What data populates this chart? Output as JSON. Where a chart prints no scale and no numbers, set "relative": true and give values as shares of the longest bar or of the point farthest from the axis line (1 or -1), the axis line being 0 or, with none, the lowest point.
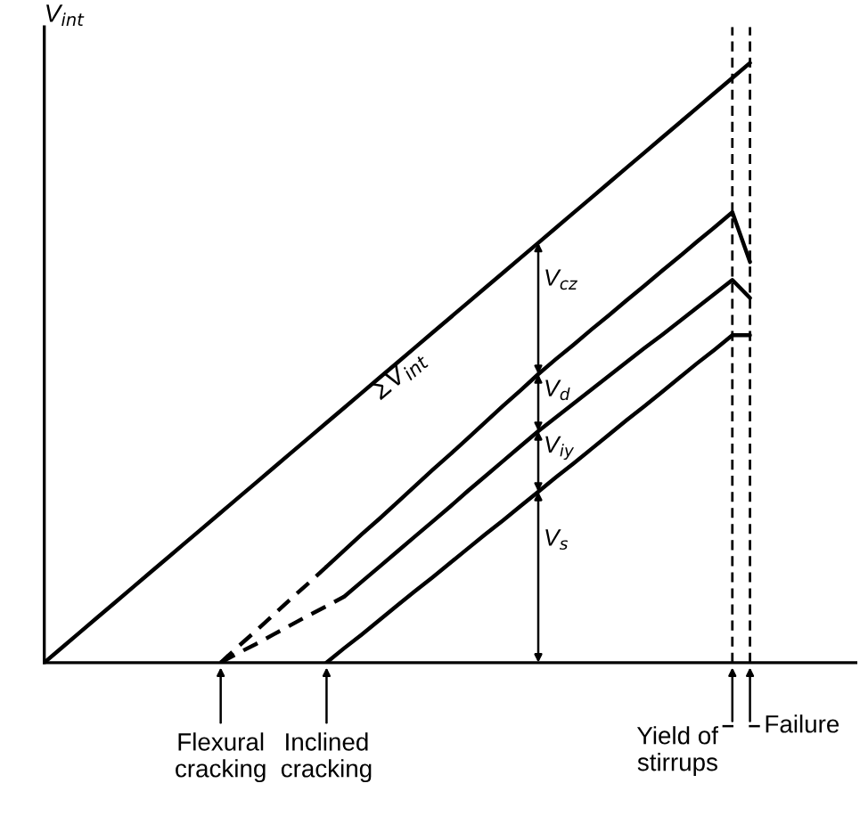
{
  "chart_data": {
    "type": "line",
    "relative": true,
    "ylabel": "V$_{int}$",
    "marker": "none",
    "categories": [
      null,
      null,
      null,
      null,
      null,
      null,
      null,
      null,
      null,
      null,
      null,
      null,
      null,
      null,
      null,
      null,
      null,
      null,
      null,
      null,
      null,
      null,
      null,
      null,
      null,
      null,
      null,
      null,
      null,
      null,
      null,
      null,
      null,
      null,
      null,
      null,
      null,
      null,
      null,
      null,
      null,
      null,
      null,
      null,
      null,
      null,
      null
    ],
    "series": [
      {
        "color": "#000000",
        "line_style": "solid",
        "values": [
          0,
          0.025,
          0.05,
          0.075,
          0.1,
          0.125,
          0.15,
          0.175,
          0.2,
          0.225,
          0.25,
          0.275,
          0.3,
          0.325,
          0.35,
          0.375,
          0.4,
          0.425,
          0.45,
          0.475,
          0.5,
          0.525,
          0.55,
          0.575,
          0.6,
          0.625,
          0.65,
          0.675,
          0.7,
          0.725,
          0.75,
          0.775,
          0.8,
          0.825,
          0.85,
          0.875,
          0.9,
          0.925,
          0.95,
          0.975,
          1,
          null,
          null,
          null,
          null,
          null,
          null
        ]
      },
      {
        "color": "#000000",
        "line_style": "dashed",
        "values": [
          null,
          null,
          null,
          null,
          null,
          null,
          null,
          null,
          null,
          null,
          0,
          0.027,
          0.053,
          0.08,
          0.107,
          0.133,
          0.16,
          null,
          null,
          null,
          null,
          null,
          null,
          null,
          null,
          null,
          null,
          null,
          null,
          null,
          null,
          null,
          null,
          null,
          null,
          null,
          null,
          null,
          null,
          null,
          null,
          null,
          null,
          null,
          null,
          null,
          null
        ]
      },
      {
        "color": "#000000",
        "line_style": "solid",
        "values": [
          null,
          null,
          null,
          null,
          null,
          null,
          null,
          null,
          null,
          null,
          null,
          null,
          null,
          null,
          null,
          null,
          0.16,
          0.187,
          0.214,
          0.24,
          0.267,
          0.294,
          0.321,
          0.347,
          0.374,
          0.401,
          0.428,
          0.454,
          0.481,
          0.506,
          0.53,
          0.555,
          0.579,
          0.604,
          0.628,
          0.653,
          0.677,
          0.702,
          0.726,
          0.751,
          0.668,
          null,
          null,
          null,
          null,
          null,
          null
        ]
      },
      {
        "color": "#000000",
        "line_style": "dashed",
        "values": [
          null,
          null,
          null,
          null,
          null,
          null,
          null,
          null,
          null,
          null,
          0,
          0.016,
          0.031,
          0.047,
          0.063,
          0.079,
          0.094,
          0.11,
          null,
          null,
          null,
          null,
          null,
          null,
          null,
          null,
          null,
          null,
          null,
          null,
          null,
          null,
          null,
          null,
          null,
          null,
          null,
          null,
          null,
          null,
          null,
          null,
          null,
          null,
          null,
          null,
          null
        ]
      },
      {
        "color": "#000000",
        "line_style": "solid",
        "values": [
          null,
          null,
          null,
          null,
          null,
          null,
          null,
          null,
          null,
          null,
          null,
          null,
          null,
          null,
          null,
          null,
          null,
          0.11,
          0.135,
          0.16,
          0.185,
          0.21,
          0.235,
          0.26,
          0.286,
          0.311,
          0.336,
          0.361,
          0.386,
          0.409,
          0.432,
          0.455,
          0.478,
          0.501,
          0.524,
          0.546,
          0.569,
          0.592,
          0.615,
          0.638,
          0.608,
          null,
          null,
          null,
          null,
          null,
          null
        ]
      },
      {
        "color": "#000000",
        "line_style": "solid",
        "values": [
          null,
          null,
          null,
          null,
          null,
          null,
          null,
          null,
          null,
          null,
          null,
          null,
          null,
          null,
          null,
          null,
          0,
          0.024,
          0.047,
          0.071,
          0.095,
          0.119,
          0.142,
          0.166,
          0.19,
          0.214,
          0.237,
          0.261,
          0.285,
          0.309,
          0.332,
          0.356,
          0.38,
          0.404,
          0.427,
          0.451,
          0.475,
          0.499,
          0.522,
          0.546,
          0.546,
          null,
          null,
          null,
          null,
          null,
          null
        ]
      }
    ],
    "annotations": [
      "ΣV$_{int}$",
      "V$_{cz}$",
      "V$_{d}$",
      "V$_{iy}$",
      "V$_{s}$",
      "Flexural\ncracking",
      "Inclined\ncracking",
      "Yield of\nstirrups",
      "Failure"
    ]
  }
}
